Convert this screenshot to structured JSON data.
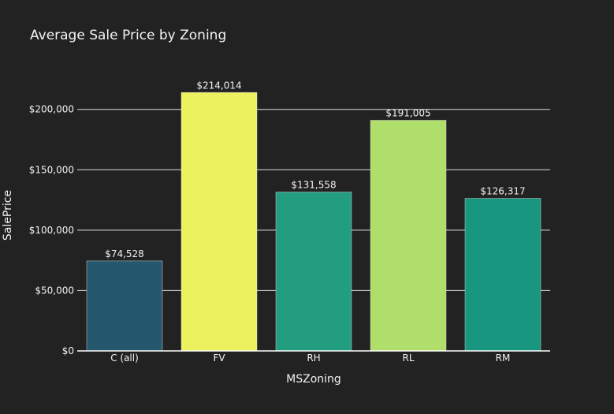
{
  "chart_data": {
    "type": "bar",
    "title": "Average Sale Price by Zoning",
    "xlabel": "MSZoning",
    "ylabel": "SalePrice",
    "categories": [
      "C (all)",
      "FV",
      "RH",
      "RL",
      "RM"
    ],
    "values": [
      74528,
      214014,
      131558,
      191005,
      126317
    ],
    "value_labels": [
      "$74,528",
      "$214,014",
      "$131,558",
      "$191,005",
      "$126,317"
    ],
    "bar_colors": [
      "#25586c",
      "#ecf15f",
      "#239d80",
      "#b0de6b",
      "#19967f"
    ],
    "yticks": [
      0,
      50000,
      100000,
      150000,
      200000
    ],
    "ytick_labels": [
      "$0",
      "$50,000",
      "$100,000",
      "$150,000",
      "$200,000"
    ],
    "ylim": [
      0,
      225280
    ],
    "grid": true,
    "background_color": "#222222",
    "grid_color": "#dddddd"
  }
}
